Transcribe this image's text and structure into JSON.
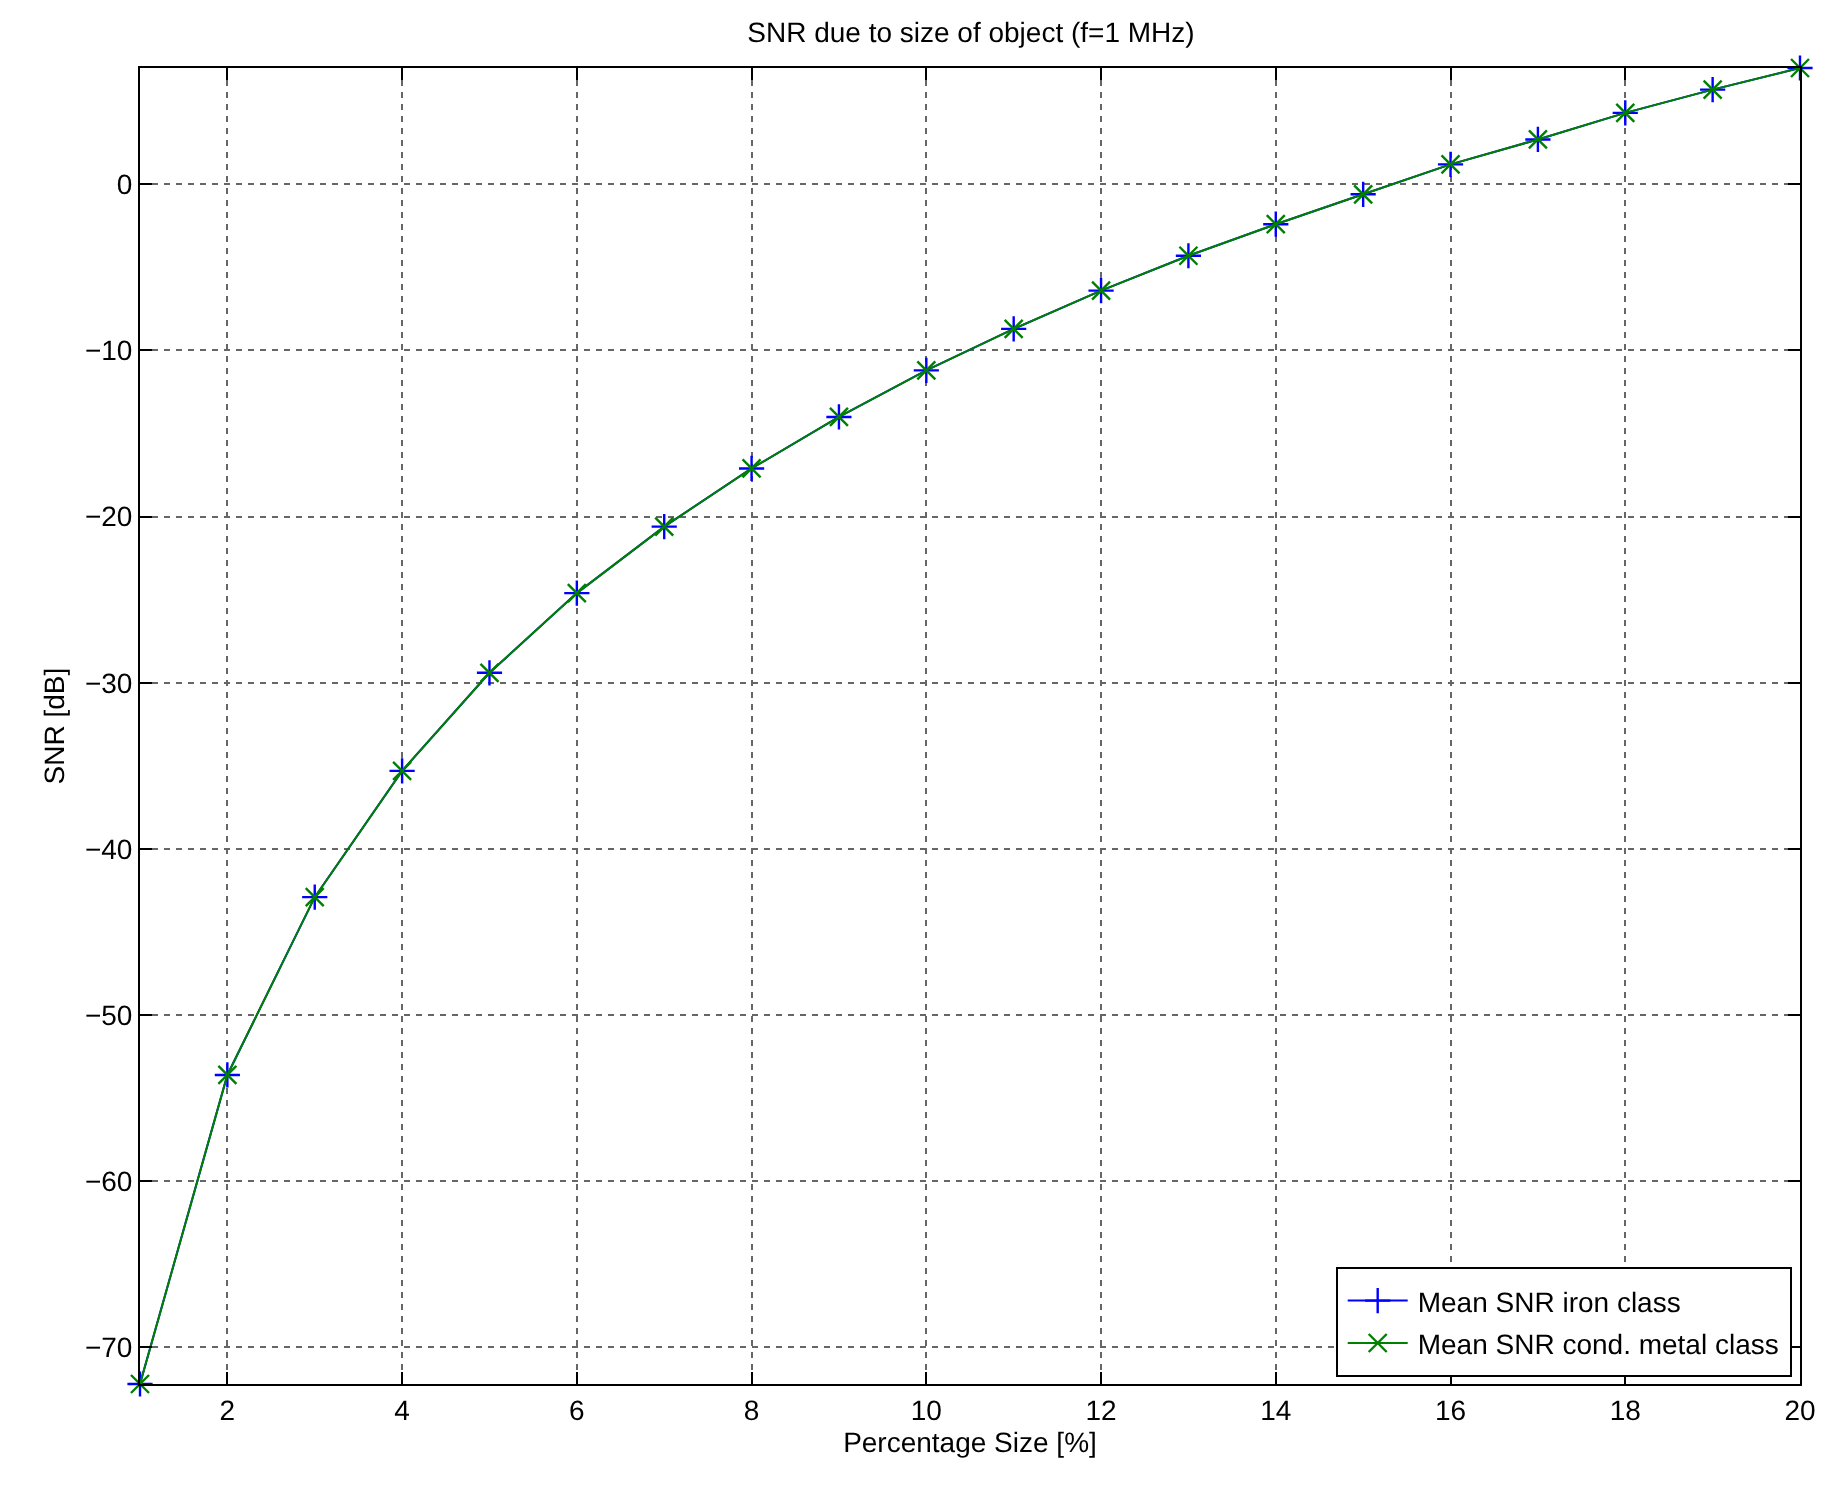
{
  "chart_data": {
    "type": "line",
    "title": "SNR due to size of object (f=1 MHz)",
    "xlabel": "Percentage Size [%]",
    "ylabel": "SNR [dB]",
    "x": [
      1,
      2,
      3,
      4,
      5,
      6,
      7,
      8,
      9,
      10,
      11,
      12,
      13,
      14,
      15,
      16,
      17,
      18,
      19,
      20
    ],
    "series": [
      {
        "name": "Mean SNR iron class",
        "color": "#0000ff",
        "marker": "cross",
        "values": [
          -72.2,
          -53.6,
          -42.9,
          -35.3,
          -29.4,
          -24.6,
          -20.6,
          -17.1,
          -14.0,
          -11.2,
          -8.7,
          -6.4,
          -4.3,
          -2.4,
          -0.6,
          1.2,
          2.7,
          4.3,
          5.7,
          7.0
        ]
      },
      {
        "name": "Mean SNR cond. metal class",
        "color": "#008000",
        "marker": "x",
        "values": [
          -72.2,
          -53.6,
          -42.9,
          -35.3,
          -29.4,
          -24.6,
          -20.6,
          -17.1,
          -14.0,
          -11.2,
          -8.7,
          -6.4,
          -4.3,
          -2.4,
          -0.6,
          1.2,
          2.7,
          4.3,
          5.7,
          7.0
        ]
      }
    ],
    "xlim": [
      1,
      20
    ],
    "xticks": [
      2,
      4,
      6,
      8,
      10,
      12,
      14,
      16,
      18,
      20
    ],
    "ylim": [
      -72.2,
      7
    ],
    "yticks": [
      -70,
      -60,
      -50,
      -40,
      -30,
      -20,
      -10,
      0
    ],
    "grid": true,
    "legend": "bottom right",
    "line_style": "solid"
  }
}
